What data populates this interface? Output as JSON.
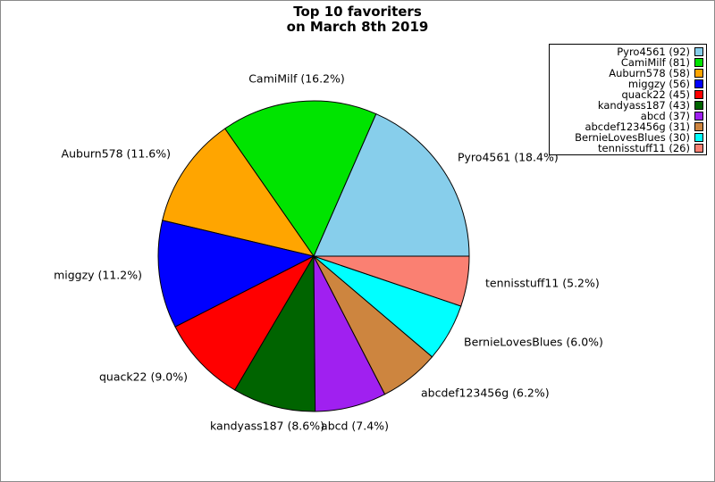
{
  "figure": {
    "title_line1": "Top 10 favoriters",
    "title_line2": "on March 8th 2019"
  },
  "chart_data": {
    "type": "pie",
    "title": "Top 10 favoriters on March 8th 2019",
    "start_angle_deg": 0,
    "direction": "counterclockwise",
    "legend_position": "upper right",
    "slices": [
      {
        "name": "Pyro4561",
        "count": 92,
        "pct": "18.4",
        "color": "#87CEEB"
      },
      {
        "name": "CamiMilf",
        "count": 81,
        "pct": "16.2",
        "color": "#00E400"
      },
      {
        "name": "Auburn578",
        "count": 58,
        "pct": "11.6",
        "color": "#FFA500"
      },
      {
        "name": "miggzy",
        "count": 56,
        "pct": "11.2",
        "color": "#0000FF"
      },
      {
        "name": "quack22",
        "count": 45,
        "pct": "9.0",
        "color": "#FF0000"
      },
      {
        "name": "kandyass187",
        "count": 43,
        "pct": "8.6",
        "color": "#006400"
      },
      {
        "name": "abcd",
        "count": 37,
        "pct": "7.4",
        "color": "#A020F0"
      },
      {
        "name": "abcdef123456g",
        "count": 31,
        "pct": "6.2",
        "color": "#CD853F"
      },
      {
        "name": "BernieLovesBlues",
        "count": 30,
        "pct": "6.0",
        "color": "#00FFFF"
      },
      {
        "name": "tennisstuff11",
        "count": 26,
        "pct": "5.2",
        "color": "#FA8072"
      }
    ],
    "pie_labels": [
      "Pyro4561 (18.4%)",
      "CamiMilf (16.2%)",
      "Auburn578 (11.6%)",
      "miggzy (11.2%)",
      "quack22 (9.0%)",
      "kandyass187 (8.6%)",
      "abcd (7.4%)",
      "abcdef123456g (6.2%)",
      "BernieLovesBlues (6.0%)",
      "tennisstuff11 (5.2%)"
    ],
    "legend_entries": [
      "Pyro4561 (92)",
      "CamiMilf (81)",
      "Auburn578 (58)",
      "miggzy (56)",
      "quack22 (45)",
      "kandyass187 (43)",
      "abcd (37)",
      "abcdef123456g (31)",
      "BernieLovesBlues (30)",
      "tennisstuff11 (26)"
    ]
  }
}
